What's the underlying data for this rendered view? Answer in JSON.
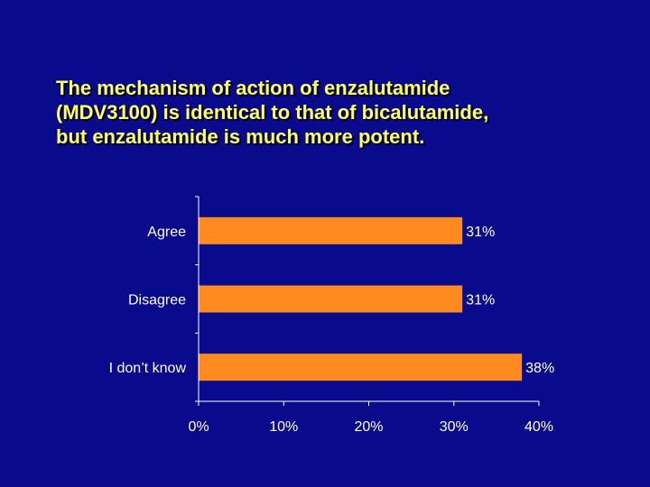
{
  "slide": {
    "title_lines": [
      "The mechanism of action of enzalutamide",
      "(MDV3100) is identical to that of bicalutamide,",
      "but enzalutamide is much more potent."
    ]
  },
  "colors": {
    "background": "#0a0a8c",
    "title": "#ffff66",
    "bar": "#ff8a1f",
    "axis": "#ffffff"
  },
  "chart_data": {
    "type": "bar",
    "orientation": "horizontal",
    "categories": [
      "Agree",
      "Disagree",
      "I don’t know"
    ],
    "values": [
      31,
      31,
      38
    ],
    "value_labels": [
      "31%",
      "31%",
      "38%"
    ],
    "xlim": [
      0,
      40
    ],
    "xticks": [
      0,
      10,
      20,
      30,
      40
    ],
    "xtick_labels": [
      "0%",
      "10%",
      "20%",
      "30%",
      "40%"
    ],
    "grid": false,
    "legend": "none"
  }
}
